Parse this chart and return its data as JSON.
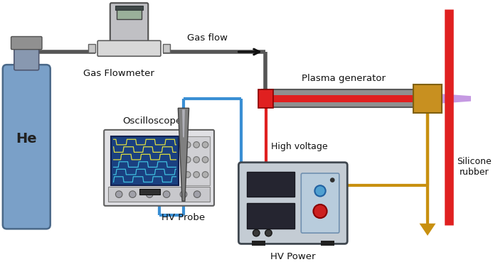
{
  "labels": {
    "gas_flow": "Gas flow",
    "gas_flowmeter": "Gas Flowmeter",
    "oscilloscope": "Oscilloscope",
    "hv_probe": "HV Probe",
    "high_voltage": "High voltage",
    "plasma_generator": "Plasma generator",
    "silicone_rubber": "Silicone\nrubber",
    "he": "He",
    "hv_power": "HV Power"
  },
  "colors": {
    "red": "#e02020",
    "blue": "#3a8fd4",
    "gold": "#c89010",
    "dark_gray": "#555555",
    "mid_gray": "#888888",
    "light_gray": "#c8c8cc",
    "tube_gray": "#909090",
    "plasma": "#c090e0",
    "he_blue": "#7aA0c8",
    "he_edge": "#4a6888",
    "black": "#1a1a1a",
    "osc_bg": "#dcdcdc",
    "osc_screen_bg": "#1a4080",
    "hv_bg": "#c4ccd4",
    "hv_edge": "#404850",
    "dark_panel": "#252530",
    "probe_gray": "#707070"
  }
}
